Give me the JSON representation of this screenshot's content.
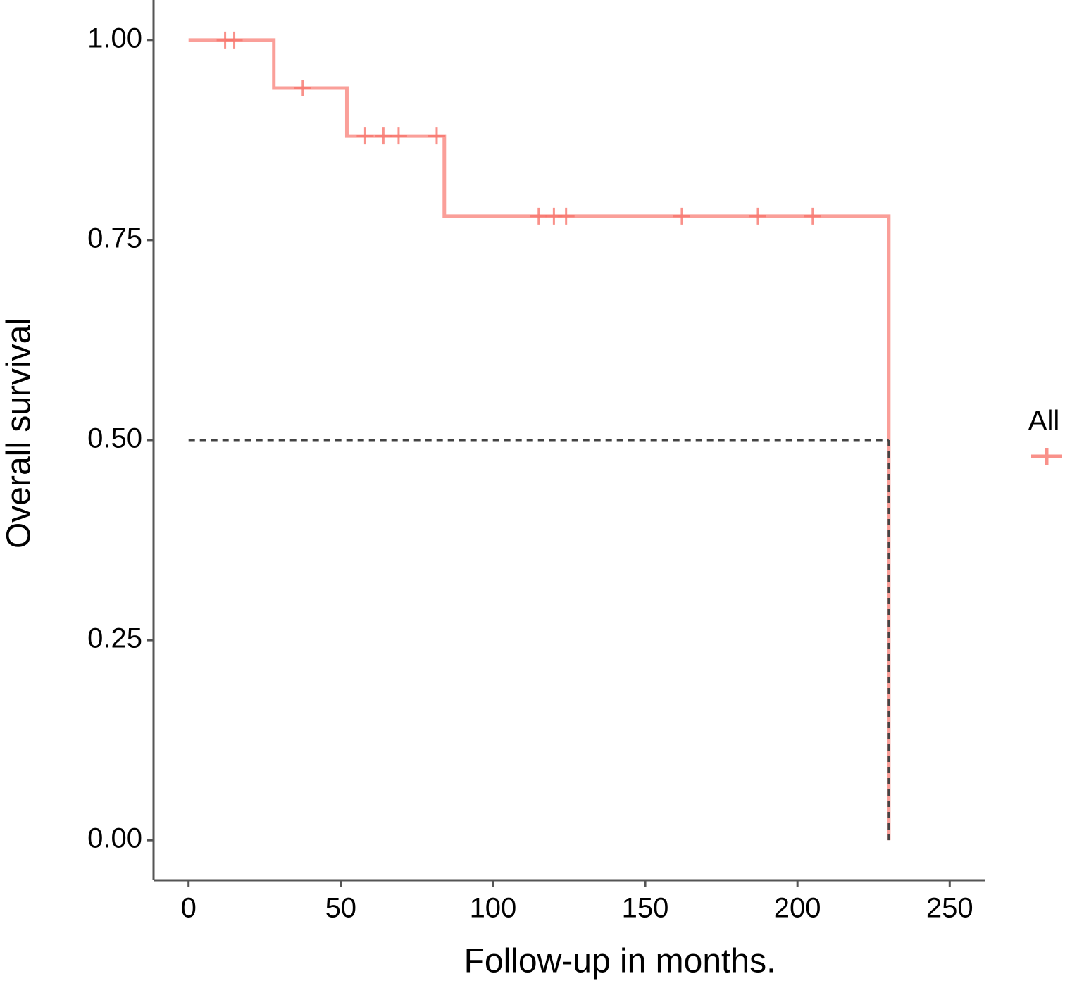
{
  "chart_data": {
    "type": "step",
    "x_label": "Follow-up in months.",
    "y_label": "Overall survival",
    "xlim": [
      -11.5,
      261.5
    ],
    "ylim": [
      -0.05,
      1.05
    ],
    "xticks": [
      0,
      50,
      100,
      150,
      200,
      250
    ],
    "yticks": [
      {
        "value": 0,
        "label": "0.00"
      },
      {
        "value": 0.25,
        "label": "0.25"
      },
      {
        "value": 0.5,
        "label": "0.50"
      },
      {
        "value": 0.75,
        "label": "0.75"
      },
      {
        "value": 1,
        "label": "1.00"
      }
    ],
    "series": [
      {
        "name": "All",
        "color": "#f8766d",
        "x": [
          0,
          28,
          52,
          84,
          230
        ],
        "values": [
          1,
          0.94,
          0.88,
          0.78,
          0
        ]
      }
    ],
    "censored": {
      "x": [
        12,
        15,
        37.5,
        58,
        64,
        69,
        81.5,
        115,
        120,
        124,
        162,
        187,
        205
      ],
      "y": [
        1,
        1,
        0.94,
        0.88,
        0.88,
        0.88,
        0.88,
        0.78,
        0.78,
        0.78,
        0.78,
        0.78,
        0.78
      ]
    },
    "median_line": {
      "x": 230,
      "y": 0.5
    }
  }
}
